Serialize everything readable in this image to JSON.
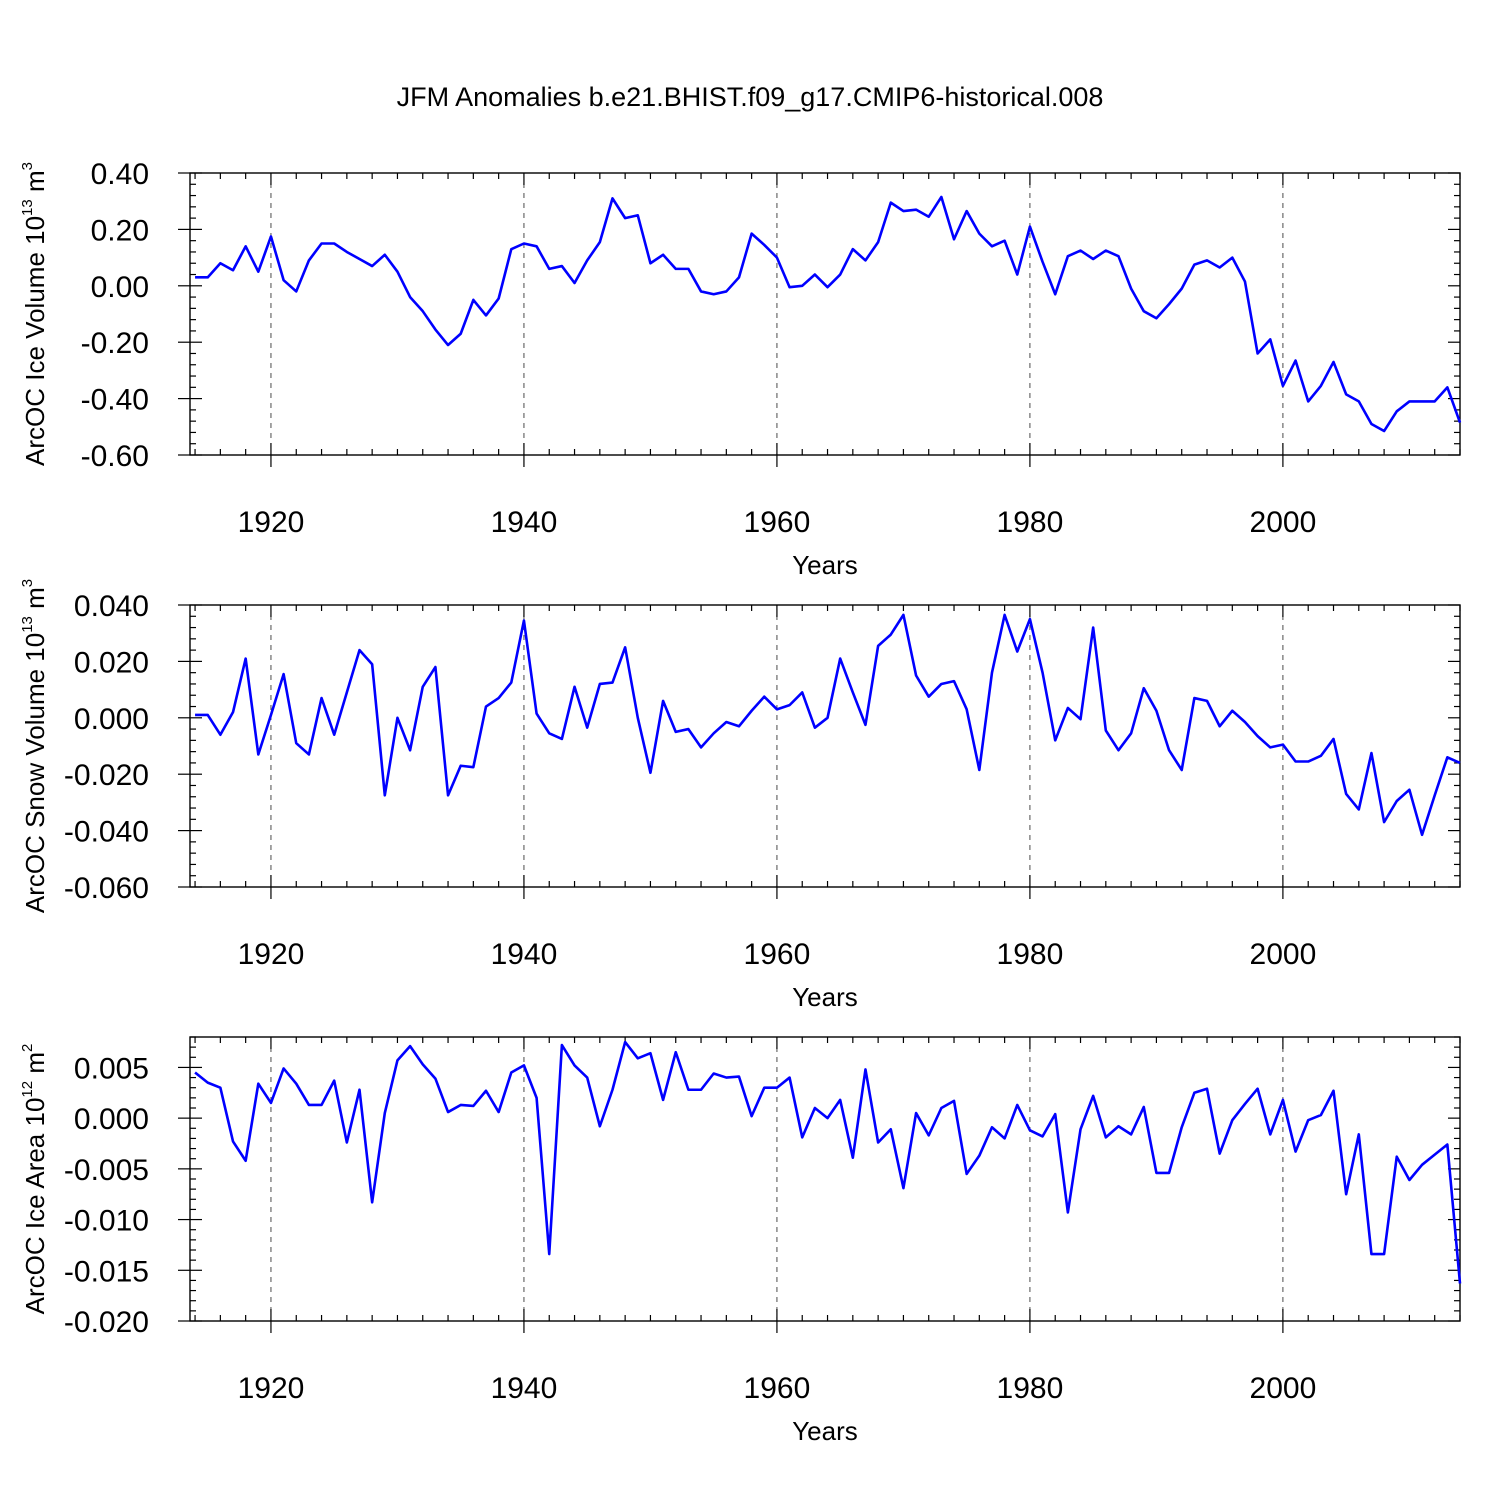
{
  "title": "JFM Anomalies b.e21.BHIST.f09_g17.CMIP6-historical.008",
  "colors": {
    "series": "#0000ff",
    "axes": "#000000",
    "background": "#ffffff"
  },
  "chart_data": [
    {
      "type": "line",
      "ylabel": {
        "main": "ArcOC Ice Volume 10",
        "exp": "13",
        "unit_base": " m",
        "unit_exp": "3"
      },
      "xlabel": "Years",
      "xlim": [
        1913.6,
        2014
      ],
      "ylim": [
        -0.6,
        0.4
      ],
      "yticks": [
        -0.6,
        -0.4,
        -0.2,
        0.0,
        0.2,
        0.4
      ],
      "ytick_labels": [
        "-0.60",
        "-0.40",
        "-0.20",
        "0.00",
        "0.20",
        "0.40"
      ],
      "xticks": [
        1920,
        1940,
        1960,
        1980,
        2000
      ],
      "xtick_labels": [
        "1920",
        "1940",
        "1960",
        "1980",
        "2000"
      ],
      "grid": "vertical dashed at major x ticks",
      "x": [
        1914,
        1915,
        1916,
        1917,
        1918,
        1919,
        1920,
        1921,
        1922,
        1923,
        1924,
        1925,
        1926,
        1927,
        1928,
        1929,
        1930,
        1931,
        1932,
        1933,
        1934,
        1935,
        1936,
        1937,
        1938,
        1939,
        1940,
        1941,
        1942,
        1943,
        1944,
        1945,
        1946,
        1947,
        1948,
        1949,
        1950,
        1951,
        1952,
        1953,
        1954,
        1955,
        1956,
        1957,
        1958,
        1959,
        1960,
        1961,
        1962,
        1963,
        1964,
        1965,
        1966,
        1967,
        1968,
        1969,
        1970,
        1971,
        1972,
        1973,
        1974,
        1975,
        1976,
        1977,
        1978,
        1979,
        1980,
        1981,
        1982,
        1983,
        1984,
        1985,
        1986,
        1987,
        1988,
        1989,
        1990,
        1991,
        1992,
        1993,
        1994,
        1995,
        1996,
        1997,
        1998,
        1999,
        2000,
        2001,
        2002,
        2003,
        2004,
        2005,
        2006,
        2007,
        2008,
        2009,
        2010,
        2011,
        2012,
        2013,
        2014
      ],
      "values": [
        0.03,
        0.03,
        0.08,
        0.055,
        0.14,
        0.05,
        0.175,
        0.02,
        -0.02,
        0.09,
        0.15,
        0.15,
        0.12,
        0.095,
        0.07,
        0.11,
        0.05,
        -0.04,
        -0.09,
        -0.155,
        -0.21,
        -0.17,
        -0.05,
        -0.105,
        -0.045,
        0.13,
        0.15,
        0.14,
        0.06,
        0.07,
        0.01,
        0.09,
        0.155,
        0.31,
        0.24,
        0.25,
        0.08,
        0.11,
        0.06,
        0.06,
        -0.02,
        -0.03,
        -0.02,
        0.03,
        0.185,
        0.145,
        0.1,
        -0.005,
        0.0,
        0.04,
        -0.005,
        0.04,
        0.13,
        0.09,
        0.155,
        0.295,
        0.265,
        0.27,
        0.245,
        0.315,
        0.165,
        0.265,
        0.185,
        0.14,
        0.16,
        0.04,
        0.21,
        0.085,
        -0.03,
        0.105,
        0.125,
        0.095,
        0.125,
        0.105,
        -0.01,
        -0.09,
        -0.115,
        -0.065,
        -0.01,
        0.075,
        0.09,
        0.065,
        0.1,
        0.015,
        -0.24,
        -0.19,
        -0.355,
        -0.265,
        -0.41,
        -0.355,
        -0.27,
        -0.385,
        -0.41,
        -0.49,
        -0.515,
        -0.445,
        -0.41,
        -0.41,
        -0.41,
        -0.36,
        -0.485
      ]
    },
    {
      "type": "line",
      "ylabel": {
        "main": "ArcOC Snow Volume 10",
        "exp": "13",
        "unit_base": " m",
        "unit_exp": "3"
      },
      "xlabel": "Years",
      "xlim": [
        1913.6,
        2014
      ],
      "ylim": [
        -0.06,
        0.04
      ],
      "yticks": [
        -0.06,
        -0.04,
        -0.02,
        0.0,
        0.02,
        0.04
      ],
      "ytick_labels": [
        "-0.060",
        "-0.040",
        "-0.020",
        "0.000",
        "0.020",
        "0.040"
      ],
      "xticks": [
        1920,
        1940,
        1960,
        1980,
        2000
      ],
      "xtick_labels": [
        "1920",
        "1940",
        "1960",
        "1980",
        "2000"
      ],
      "grid": "vertical dashed at major x ticks",
      "x": [
        1914,
        1915,
        1916,
        1917,
        1918,
        1919,
        1920,
        1921,
        1922,
        1923,
        1924,
        1925,
        1926,
        1927,
        1928,
        1929,
        1930,
        1931,
        1932,
        1933,
        1934,
        1935,
        1936,
        1937,
        1938,
        1939,
        1940,
        1941,
        1942,
        1943,
        1944,
        1945,
        1946,
        1947,
        1948,
        1949,
        1950,
        1951,
        1952,
        1953,
        1954,
        1955,
        1956,
        1957,
        1958,
        1959,
        1960,
        1961,
        1962,
        1963,
        1964,
        1965,
        1966,
        1967,
        1968,
        1969,
        1970,
        1971,
        1972,
        1973,
        1974,
        1975,
        1976,
        1977,
        1978,
        1979,
        1980,
        1981,
        1982,
        1983,
        1984,
        1985,
        1986,
        1987,
        1988,
        1989,
        1990,
        1991,
        1992,
        1993,
        1994,
        1995,
        1996,
        1997,
        1998,
        1999,
        2000,
        2001,
        2002,
        2003,
        2004,
        2005,
        2006,
        2007,
        2008,
        2009,
        2010,
        2011,
        2012,
        2013,
        2014
      ],
      "values": [
        0.001,
        0.001,
        -0.006,
        0.002,
        0.021,
        -0.013,
        0.001,
        0.0155,
        -0.009,
        -0.013,
        0.007,
        -0.006,
        0.009,
        0.024,
        0.019,
        -0.0275,
        0.0,
        -0.0115,
        0.011,
        0.018,
        -0.0275,
        -0.017,
        -0.0175,
        0.004,
        0.007,
        0.0125,
        0.0345,
        0.0015,
        -0.0055,
        -0.0075,
        0.011,
        -0.0035,
        0.012,
        0.0125,
        0.025,
        0.0,
        -0.0195,
        0.006,
        -0.005,
        -0.004,
        -0.0105,
        -0.0055,
        -0.0015,
        -0.003,
        0.0025,
        0.0075,
        0.003,
        0.0045,
        0.009,
        -0.0035,
        0.0,
        0.021,
        0.009,
        -0.0025,
        0.0255,
        0.0295,
        0.0365,
        0.015,
        0.0075,
        0.012,
        0.013,
        0.003,
        -0.0185,
        0.016,
        0.0365,
        0.0235,
        0.035,
        0.016,
        -0.008,
        0.0035,
        -0.0005,
        0.032,
        -0.0045,
        -0.0115,
        -0.0055,
        0.0105,
        0.0025,
        -0.0115,
        -0.0185,
        0.007,
        0.006,
        -0.003,
        0.0025,
        -0.0015,
        -0.0065,
        -0.0105,
        -0.0095,
        -0.0155,
        -0.0155,
        -0.0135,
        -0.0075,
        -0.027,
        -0.0325,
        -0.0125,
        -0.037,
        -0.0295,
        -0.0255,
        -0.0415,
        -0.0275,
        -0.014,
        -0.016
      ]
    },
    {
      "type": "line",
      "ylabel": {
        "main": "ArcOC Ice Area 10",
        "exp": "12",
        "unit_base": " m",
        "unit_exp": "2"
      },
      "xlabel": "Years",
      "xlim": [
        1913.6,
        2014
      ],
      "ylim": [
        -0.02,
        0.008
      ],
      "yticks": [
        -0.02,
        -0.015,
        -0.01,
        -0.005,
        0.0,
        0.005
      ],
      "ytick_labels": [
        "-0.020",
        "-0.015",
        "-0.010",
        "-0.005",
        "0.000",
        "0.005"
      ],
      "xticks": [
        1920,
        1940,
        1960,
        1980,
        2000
      ],
      "xtick_labels": [
        "1920",
        "1940",
        "1960",
        "1980",
        "2000"
      ],
      "grid": "vertical dashed at major x ticks",
      "x": [
        1914,
        1915,
        1916,
        1917,
        1918,
        1919,
        1920,
        1921,
        1922,
        1923,
        1924,
        1925,
        1926,
        1927,
        1928,
        1929,
        1930,
        1931,
        1932,
        1933,
        1934,
        1935,
        1936,
        1937,
        1938,
        1939,
        1940,
        1941,
        1942,
        1943,
        1944,
        1945,
        1946,
        1947,
        1948,
        1949,
        1950,
        1951,
        1952,
        1953,
        1954,
        1955,
        1956,
        1957,
        1958,
        1959,
        1960,
        1961,
        1962,
        1963,
        1964,
        1965,
        1966,
        1967,
        1968,
        1969,
        1970,
        1971,
        1972,
        1973,
        1974,
        1975,
        1976,
        1977,
        1978,
        1979,
        1980,
        1981,
        1982,
        1983,
        1984,
        1985,
        1986,
        1987,
        1988,
        1989,
        1990,
        1991,
        1992,
        1993,
        1994,
        1995,
        1996,
        1997,
        1998,
        1999,
        2000,
        2001,
        2002,
        2003,
        2004,
        2005,
        2006,
        2007,
        2008,
        2009,
        2010,
        2011,
        2012,
        2013,
        2014
      ],
      "values": [
        0.0045,
        0.0035,
        0.003,
        -0.0023,
        -0.0042,
        0.0034,
        0.0015,
        0.0049,
        0.0034,
        0.0013,
        0.0013,
        0.0037,
        -0.0024,
        0.0028,
        -0.0083,
        0.0005,
        0.0057,
        0.0071,
        0.0053,
        0.0039,
        0.0006,
        0.0013,
        0.0012,
        0.0027,
        0.0006,
        0.0045,
        0.0052,
        0.002,
        -0.0134,
        0.0072,
        0.0052,
        0.004,
        -0.0008,
        0.0028,
        0.0075,
        0.0059,
        0.0064,
        0.0018,
        0.0065,
        0.0028,
        0.0028,
        0.0044,
        0.004,
        0.0041,
        0.0002,
        0.003,
        0.003,
        0.004,
        -0.0019,
        0.001,
        0.0,
        0.0018,
        -0.0039,
        0.0048,
        -0.0024,
        -0.0011,
        -0.0069,
        0.0005,
        -0.0017,
        0.001,
        0.0017,
        -0.0055,
        -0.0037,
        -0.0009,
        -0.002,
        0.0013,
        -0.0012,
        -0.0018,
        0.0004,
        -0.0093,
        -0.0011,
        0.0022,
        -0.0019,
        -0.0008,
        -0.0016,
        0.0011,
        -0.0054,
        -0.0054,
        -0.0009,
        0.0025,
        0.0029,
        -0.0035,
        -0.0002,
        0.0014,
        0.0029,
        -0.0016,
        0.0018,
        -0.0033,
        -0.0002,
        0.0003,
        0.0027,
        -0.0075,
        -0.0016,
        -0.0134,
        -0.0134,
        -0.0038,
        -0.0061,
        -0.0046,
        -0.0036,
        -0.0026,
        -0.0163
      ]
    }
  ]
}
